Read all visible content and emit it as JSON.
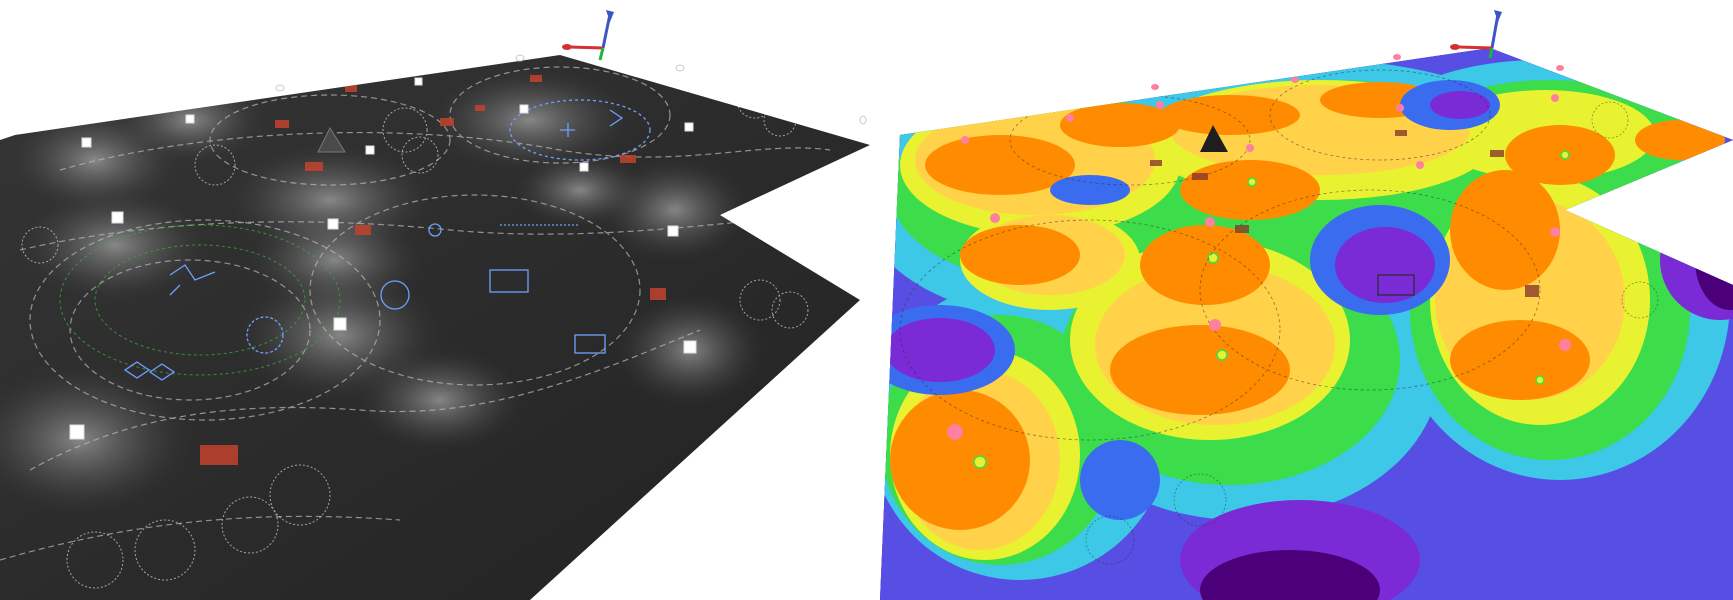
{
  "views": [
    {
      "id": "rendered-view",
      "style": "dark-surface-with-light-pools"
    },
    {
      "id": "false-color-view",
      "style": "illuminance-false-color"
    }
  ],
  "palette": {
    "ground_dark": "#2b2b2b",
    "ground_light": "#3a3a3a",
    "lamp": "#ffffff",
    "path_line": "#c9c9c9",
    "blue_detail": "#6fa0ff",
    "green_detail": "#39a83a",
    "red_block": "#c2422e",
    "false_color_scale": [
      "#4b007a",
      "#7a2bd6",
      "#3a6cf0",
      "#3cc8e6",
      "#3ddc4a",
      "#e8f230",
      "#ffd24a",
      "#ff8c00"
    ]
  },
  "icons": [
    "axis-gizmo-icon",
    "lamp-post-icon",
    "cone-object-icon",
    "tree-icon"
  ]
}
